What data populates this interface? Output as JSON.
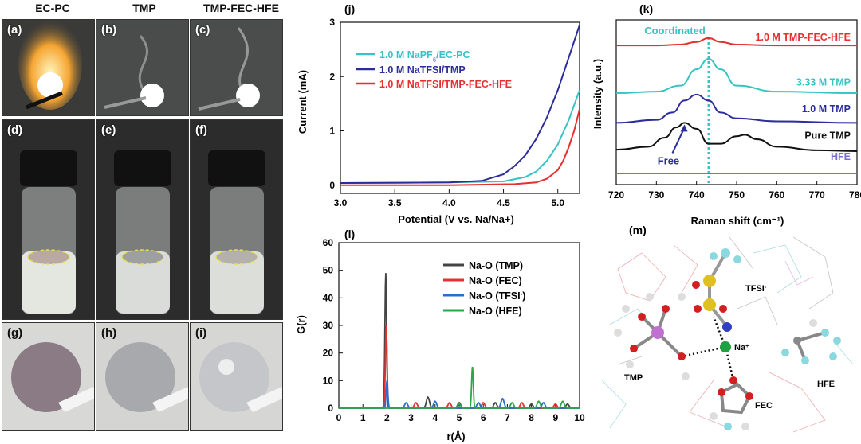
{
  "photos": {
    "col_titles": [
      "EC-PC",
      "TMP",
      "TMP-FEC-HFE"
    ],
    "labels": [
      "(a)",
      "(b)",
      "(c)",
      "(d)",
      "(e)",
      "(f)",
      "(g)",
      "(h)",
      "(i)"
    ]
  },
  "molecule": {
    "label": "(m)",
    "atoms_text": {
      "tfsi": "TFSI",
      "tfsi_sup": "-",
      "na": "Na",
      "na_sup": "+",
      "tmp": "TMP",
      "fec": "FEC",
      "hfe": "HFE"
    }
  },
  "colors": {
    "cyan": "#39c3c3",
    "navy": "#2b2d9a",
    "red": "#e63030",
    "black": "#111111",
    "gray": "#444444",
    "green": "#2aa84a",
    "blue": "#2d6cc9",
    "purple": "#7a6fd0"
  },
  "chart_data": [
    {
      "id": "j",
      "panel_label": "(j)",
      "type": "line",
      "xlabel": "Potential (V vs. Na/Na+)",
      "ylabel": "Current (mA)",
      "xlim": [
        3.0,
        5.2
      ],
      "ylim": [
        -0.15,
        3.0
      ],
      "xticks": [
        3.0,
        3.5,
        4.0,
        4.5,
        5.0
      ],
      "yticks": [
        0,
        1,
        2,
        3
      ],
      "legend_position": "top-left",
      "series": [
        {
          "name": "1.0 M NaPF₆/EC-PC",
          "name_main": "1.0 M NaPF",
          "name_sub": "6",
          "name_tail": "/EC-PC",
          "color": "#39c3c3",
          "x": [
            3.0,
            4.0,
            4.5,
            4.7,
            4.8,
            4.9,
            5.0,
            5.1,
            5.2
          ],
          "y": [
            0.04,
            0.05,
            0.07,
            0.15,
            0.25,
            0.45,
            0.75,
            1.2,
            1.75
          ]
        },
        {
          "name": "1.0 M NaTFSI/TMP",
          "color": "#2b2d9a",
          "x": [
            3.0,
            4.0,
            4.3,
            4.5,
            4.6,
            4.7,
            4.8,
            4.9,
            5.0,
            5.1,
            5.2
          ],
          "y": [
            0.04,
            0.05,
            0.08,
            0.2,
            0.35,
            0.55,
            0.85,
            1.25,
            1.75,
            2.35,
            2.95
          ]
        },
        {
          "name": "1.0 M NaTFSI/TMP-FEC-HFE",
          "color": "#e63030",
          "x": [
            3.0,
            4.0,
            4.6,
            4.8,
            4.9,
            5.0,
            5.05,
            5.1,
            5.15,
            5.2
          ],
          "y": [
            0.0,
            0.0,
            0.02,
            0.05,
            0.12,
            0.28,
            0.45,
            0.7,
            1.0,
            1.4
          ]
        }
      ]
    },
    {
      "id": "k",
      "panel_label": "(k)",
      "type": "line",
      "xlabel": "Raman shift (cm⁻¹)",
      "ylabel": "Intensity (a.u.)",
      "xlim": [
        720,
        780
      ],
      "xticks": [
        720,
        730,
        740,
        750,
        760,
        770,
        780
      ],
      "annotation_top": "Coordinated",
      "annotation_free": "Free",
      "dashed_line_x": 743,
      "series": [
        {
          "name": "1.0 M TMP-FEC-HFE",
          "color": "#e63030",
          "x": [
            720,
            730,
            736,
            740,
            743,
            746,
            750,
            760,
            780
          ],
          "y": [
            0.3,
            0.3,
            0.33,
            0.42,
            0.55,
            0.42,
            0.33,
            0.3,
            0.3
          ],
          "offset": 4.0
        },
        {
          "name": "3.33 M TMP",
          "color": "#39c3c3",
          "x": [
            720,
            730,
            736,
            740,
            743,
            746,
            750,
            760,
            780
          ],
          "y": [
            0.2,
            0.25,
            0.45,
            1.0,
            1.35,
            1.0,
            0.45,
            0.25,
            0.2
          ],
          "offset": 2.5
        },
        {
          "name": "1.0 M TMP",
          "color": "#2b2d9a",
          "x": [
            720,
            730,
            734,
            737,
            740,
            743,
            746,
            750,
            760,
            780
          ],
          "y": [
            0.1,
            0.2,
            0.45,
            0.85,
            1.05,
            0.85,
            0.45,
            0.25,
            0.15,
            0.1
          ],
          "offset": 1.6
        },
        {
          "name": "Pure TMP",
          "color": "#111111",
          "x": [
            720,
            728,
            732,
            735,
            737,
            740,
            743,
            746,
            750,
            752,
            755,
            760,
            770,
            780
          ],
          "y": [
            0.1,
            0.2,
            0.5,
            0.85,
            1.0,
            0.8,
            0.3,
            0.3,
            0.55,
            0.6,
            0.45,
            0.2,
            0.08,
            0.05
          ],
          "offset": 0.7
        },
        {
          "name": "HFE",
          "color": "#7a6fd0",
          "x": [
            720,
            780
          ],
          "y": [
            0.0,
            0.0
          ],
          "offset": 0.0
        }
      ]
    },
    {
      "id": "l",
      "panel_label": "(l)",
      "type": "line",
      "xlabel": "r(Å)",
      "ylabel": "G(r)",
      "xlim": [
        0,
        10
      ],
      "ylim": [
        0,
        60
      ],
      "xticks": [
        0,
        1,
        2,
        3,
        4,
        5,
        6,
        7,
        8,
        9,
        10
      ],
      "yticks": [
        0,
        10,
        20,
        30,
        40,
        50,
        60
      ],
      "legend_position": "top-right",
      "series": [
        {
          "name": "Na-O (TMP)",
          "color": "#444444",
          "peaks": [
            [
              1.95,
              49
            ],
            [
              3.7,
              4
            ],
            [
              5.0,
              2
            ],
            [
              6.5,
              2
            ],
            [
              8.0,
              1.5
            ],
            [
              9.5,
              1.5
            ]
          ]
        },
        {
          "name": "Na-O (FEC)",
          "color": "#e63030",
          "peaks": [
            [
              1.97,
              30
            ],
            [
              3.2,
              2
            ],
            [
              4.6,
              2
            ],
            [
              6.0,
              2
            ],
            [
              7.6,
              2
            ],
            [
              9.0,
              1.5
            ]
          ]
        },
        {
          "name": "Na-O (TFSI⁻)",
          "name_main": "Na-O (TFSI",
          "name_sup": "-",
          "name_tail": ")",
          "color": "#2d6cc9",
          "peaks": [
            [
              2.0,
              10
            ],
            [
              2.8,
              2
            ],
            [
              4.0,
              2.5
            ],
            [
              5.8,
              2
            ],
            [
              6.8,
              3.5
            ],
            [
              8.5,
              2
            ]
          ]
        },
        {
          "name": "Na-O (HFE)",
          "color": "#2aa84a",
          "peaks": [
            [
              5.55,
              15
            ],
            [
              5.0,
              1.5
            ],
            [
              7.2,
              2
            ],
            [
              8.3,
              2.5
            ],
            [
              9.3,
              2.5
            ]
          ]
        }
      ]
    }
  ]
}
